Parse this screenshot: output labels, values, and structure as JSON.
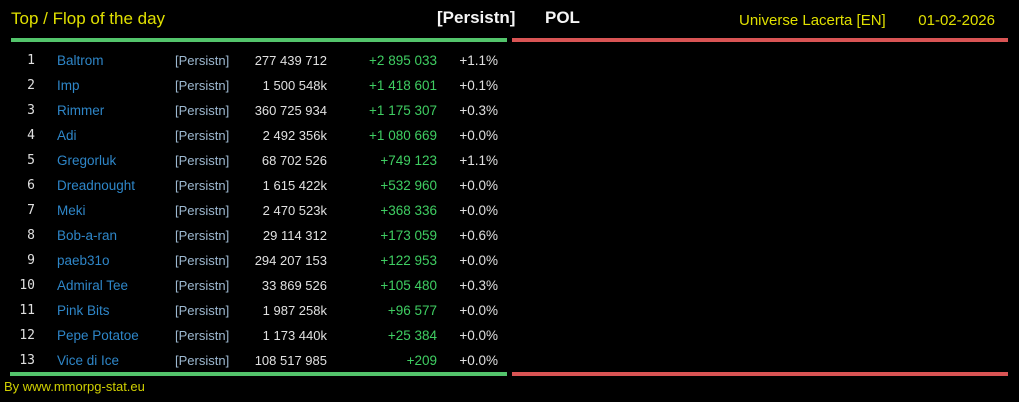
{
  "header": {
    "title": "Top / Flop of the day",
    "alliance_tag": "[Persistn]",
    "country": "POL",
    "universe": "Universe Lacerta [EN]",
    "date": "01-02-2026"
  },
  "footer": {
    "credit": "By www.mmorpg-stat.eu"
  },
  "colors": {
    "background": "#000000",
    "yellow": "#e0e000",
    "yellow_footer": "#cfcf00",
    "white_bold": "#f5f5f5",
    "name_blue": "#2e86c8",
    "tag_blue": "#9db9d1",
    "value_white": "#e0e0e0",
    "change_green": "#3fce62",
    "line_green": "#53c46b",
    "line_red": "#d95454"
  },
  "table": {
    "rows": [
      {
        "rank": "1",
        "name": "Baltrom",
        "tag": "[Persistn]",
        "value": "277 439 712",
        "change": "+2 895 033",
        "percent": "+1.1%"
      },
      {
        "rank": "2",
        "name": "Imp",
        "tag": "[Persistn]",
        "value": "1 500 548k",
        "change": "+1 418 601",
        "percent": "+0.1%"
      },
      {
        "rank": "3",
        "name": "Rimmer",
        "tag": "[Persistn]",
        "value": "360 725 934",
        "change": "+1 175 307",
        "percent": "+0.3%"
      },
      {
        "rank": "4",
        "name": "Adi",
        "tag": "[Persistn]",
        "value": "2 492 356k",
        "change": "+1 080 669",
        "percent": "+0.0%"
      },
      {
        "rank": "5",
        "name": "Gregorluk",
        "tag": "[Persistn]",
        "value": "68 702 526",
        "change": "+749 123",
        "percent": "+1.1%"
      },
      {
        "rank": "6",
        "name": "Dreadnought",
        "tag": "[Persistn]",
        "value": "1 615 422k",
        "change": "+532 960",
        "percent": "+0.0%"
      },
      {
        "rank": "7",
        "name": "Meki",
        "tag": "[Persistn]",
        "value": "2 470 523k",
        "change": "+368 336",
        "percent": "+0.0%"
      },
      {
        "rank": "8",
        "name": "Bob-a-ran",
        "tag": "[Persistn]",
        "value": "29 114 312",
        "change": "+173 059",
        "percent": "+0.6%"
      },
      {
        "rank": "9",
        "name": "paeb31o",
        "tag": "[Persistn]",
        "value": "294 207 153",
        "change": "+122 953",
        "percent": "+0.0%"
      },
      {
        "rank": "10",
        "name": "Admiral Tee",
        "tag": "[Persistn]",
        "value": "33 869 526",
        "change": "+105 480",
        "percent": "+0.3%"
      },
      {
        "rank": "11",
        "name": "Pink Bits",
        "tag": "[Persistn]",
        "value": "1 987 258k",
        "change": "+96 577",
        "percent": "+0.0%"
      },
      {
        "rank": "12",
        "name": "Pepe Potatoe",
        "tag": "[Persistn]",
        "value": "1 173 440k",
        "change": "+25 384",
        "percent": "+0.0%"
      },
      {
        "rank": "13",
        "name": "Vice di Ice",
        "tag": "[Persistn]",
        "value": "108 517 985",
        "change": "+209",
        "percent": "+0.0%"
      }
    ]
  }
}
